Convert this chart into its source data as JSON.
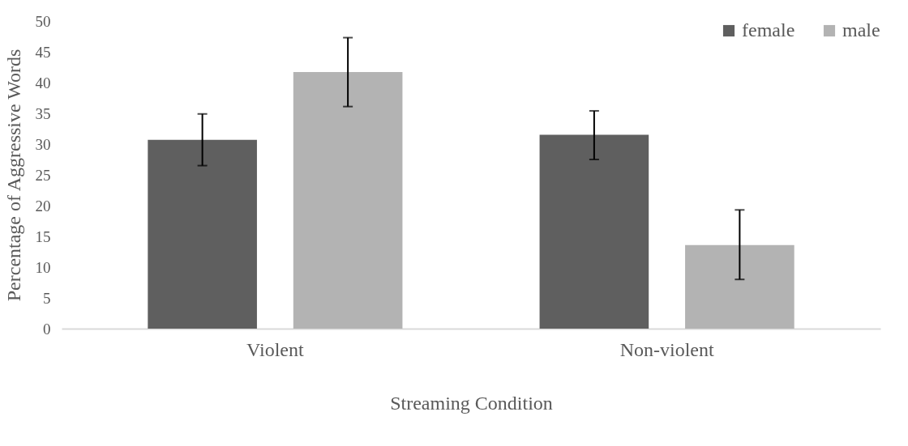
{
  "chart_data": {
    "type": "bar",
    "xlabel": "Streaming Condition",
    "ylabel": "Percentage of Aggressive Words",
    "categories": [
      "Violent",
      "Non-violent"
    ],
    "series": [
      {
        "name": "female",
        "color": "#5f5f5f",
        "values": [
          30.7,
          31.5
        ],
        "errors": [
          [
            26.5,
            34.9
          ],
          [
            27.5,
            35.4
          ]
        ]
      },
      {
        "name": "male",
        "color": "#b3b3b3",
        "values": [
          41.7,
          13.6
        ],
        "errors": [
          [
            36.1,
            47.3
          ],
          [
            8.0,
            19.3
          ]
        ]
      }
    ],
    "ylim": [
      0,
      50
    ],
    "yticks": [
      0,
      5,
      10,
      15,
      20,
      25,
      30,
      35,
      40,
      45,
      50
    ],
    "grid": false,
    "legend": "top right"
  }
}
